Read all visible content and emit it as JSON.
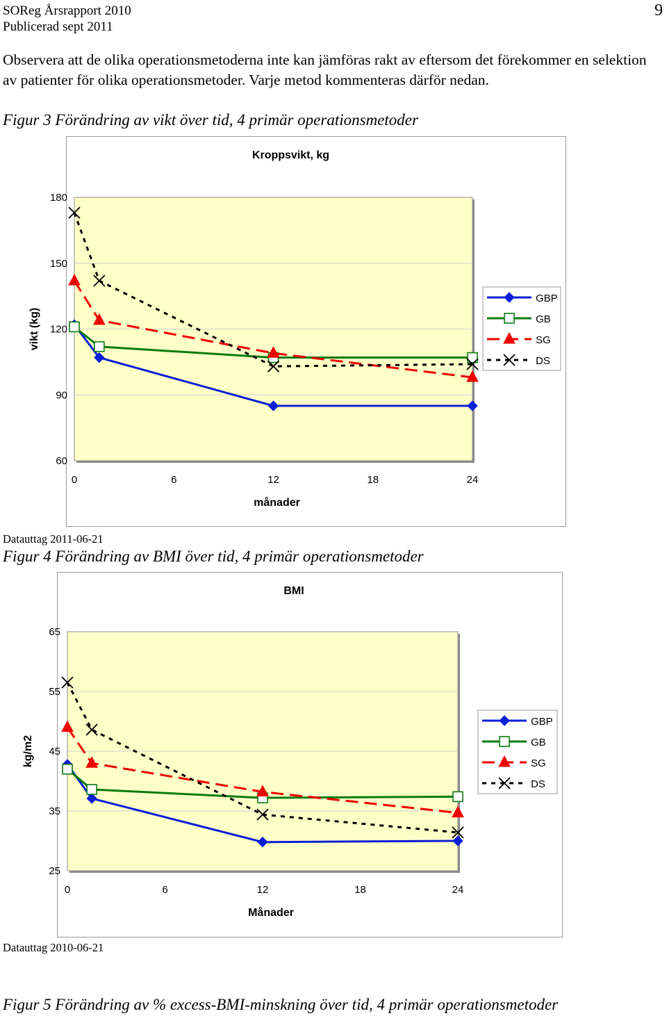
{
  "header": {
    "report_title": "SOReg Årsrapport 2010",
    "published": "Publicerad sept 2011",
    "page_number": "9"
  },
  "intro_text": "Observera att de olika operationsmetoderna inte kan jämföras rakt av eftersom det förekommer en selektion av patienter för olika operationsmetoder. Varje metod kommenteras därför nedan.",
  "figure3": {
    "caption": "Figur 3 Förändring av vikt över tid, 4 primär operationsmetoder",
    "data_note": "Datauttag 2011-06-21"
  },
  "figure4": {
    "caption": "Figur 4 Förändring av BMI över tid, 4 primär operationsmetoder",
    "data_note": "Datauttag 2010-06-21"
  },
  "figure5": {
    "caption": "Figur 5 Förändring av % excess-BMI-minskning över tid, 4 primär operationsmetoder"
  },
  "chart_data": [
    {
      "type": "line",
      "title": "Kroppsvikt, kg",
      "xlabel": "månader",
      "ylabel": "vikt (kg)",
      "xlim": [
        0,
        24
      ],
      "ylim": [
        60,
        180
      ],
      "xticks": [
        "0",
        "6",
        "12",
        "18",
        "24"
      ],
      "yticks": [
        "180",
        "150",
        "120",
        "90",
        "60"
      ],
      "legend_position": "right",
      "series": [
        {
          "name": "GBP",
          "x": [
            0,
            1.5,
            12,
            24
          ],
          "values": [
            122,
            107,
            85,
            85
          ],
          "color": "#0a1fd6",
          "marker": "diamond",
          "dash": "solid"
        },
        {
          "name": "GB",
          "x": [
            0,
            1.5,
            12,
            24
          ],
          "values": [
            121,
            112,
            107,
            107
          ],
          "color": "#0a7a10",
          "marker": "square",
          "dash": "solid"
        },
        {
          "name": "SG",
          "x": [
            0,
            1.5,
            12,
            24
          ],
          "values": [
            142,
            124,
            109,
            98
          ],
          "color": "#ee0000",
          "marker": "triangle",
          "dash": "long"
        },
        {
          "name": "DS",
          "x": [
            0,
            1.5,
            12,
            24
          ],
          "values": [
            173,
            142,
            103,
            104
          ],
          "color": "#000000",
          "marker": "x",
          "dash": "short"
        }
      ]
    },
    {
      "type": "line",
      "title": "BMI",
      "xlabel": "Månader",
      "ylabel": "kg/m2",
      "xlim": [
        0,
        24
      ],
      "ylim": [
        25,
        65
      ],
      "xticks": [
        "0",
        "6",
        "12",
        "18",
        "24"
      ],
      "yticks": [
        "65",
        "55",
        "45",
        "35",
        "25"
      ],
      "legend_position": "right",
      "series": [
        {
          "name": "GBP",
          "x": [
            0,
            1.5,
            12,
            24
          ],
          "values": [
            42.8,
            37.1,
            29.8,
            30
          ],
          "color": "#0a1fd6",
          "marker": "diamond",
          "dash": "solid"
        },
        {
          "name": "GB",
          "x": [
            0,
            1.5,
            12,
            24
          ],
          "values": [
            42,
            38.6,
            37.2,
            37.4
          ],
          "color": "#0a7a10",
          "marker": "square",
          "dash": "solid"
        },
        {
          "name": "SG",
          "x": [
            0,
            1.5,
            12,
            24
          ],
          "values": [
            49,
            43,
            38.2,
            34.7
          ],
          "color": "#ee0000",
          "marker": "triangle",
          "dash": "long"
        },
        {
          "name": "DS",
          "x": [
            0,
            1.5,
            12,
            24
          ],
          "values": [
            56.5,
            48.6,
            34.4,
            31.4
          ],
          "color": "#000000",
          "marker": "x",
          "dash": "short"
        }
      ]
    }
  ]
}
